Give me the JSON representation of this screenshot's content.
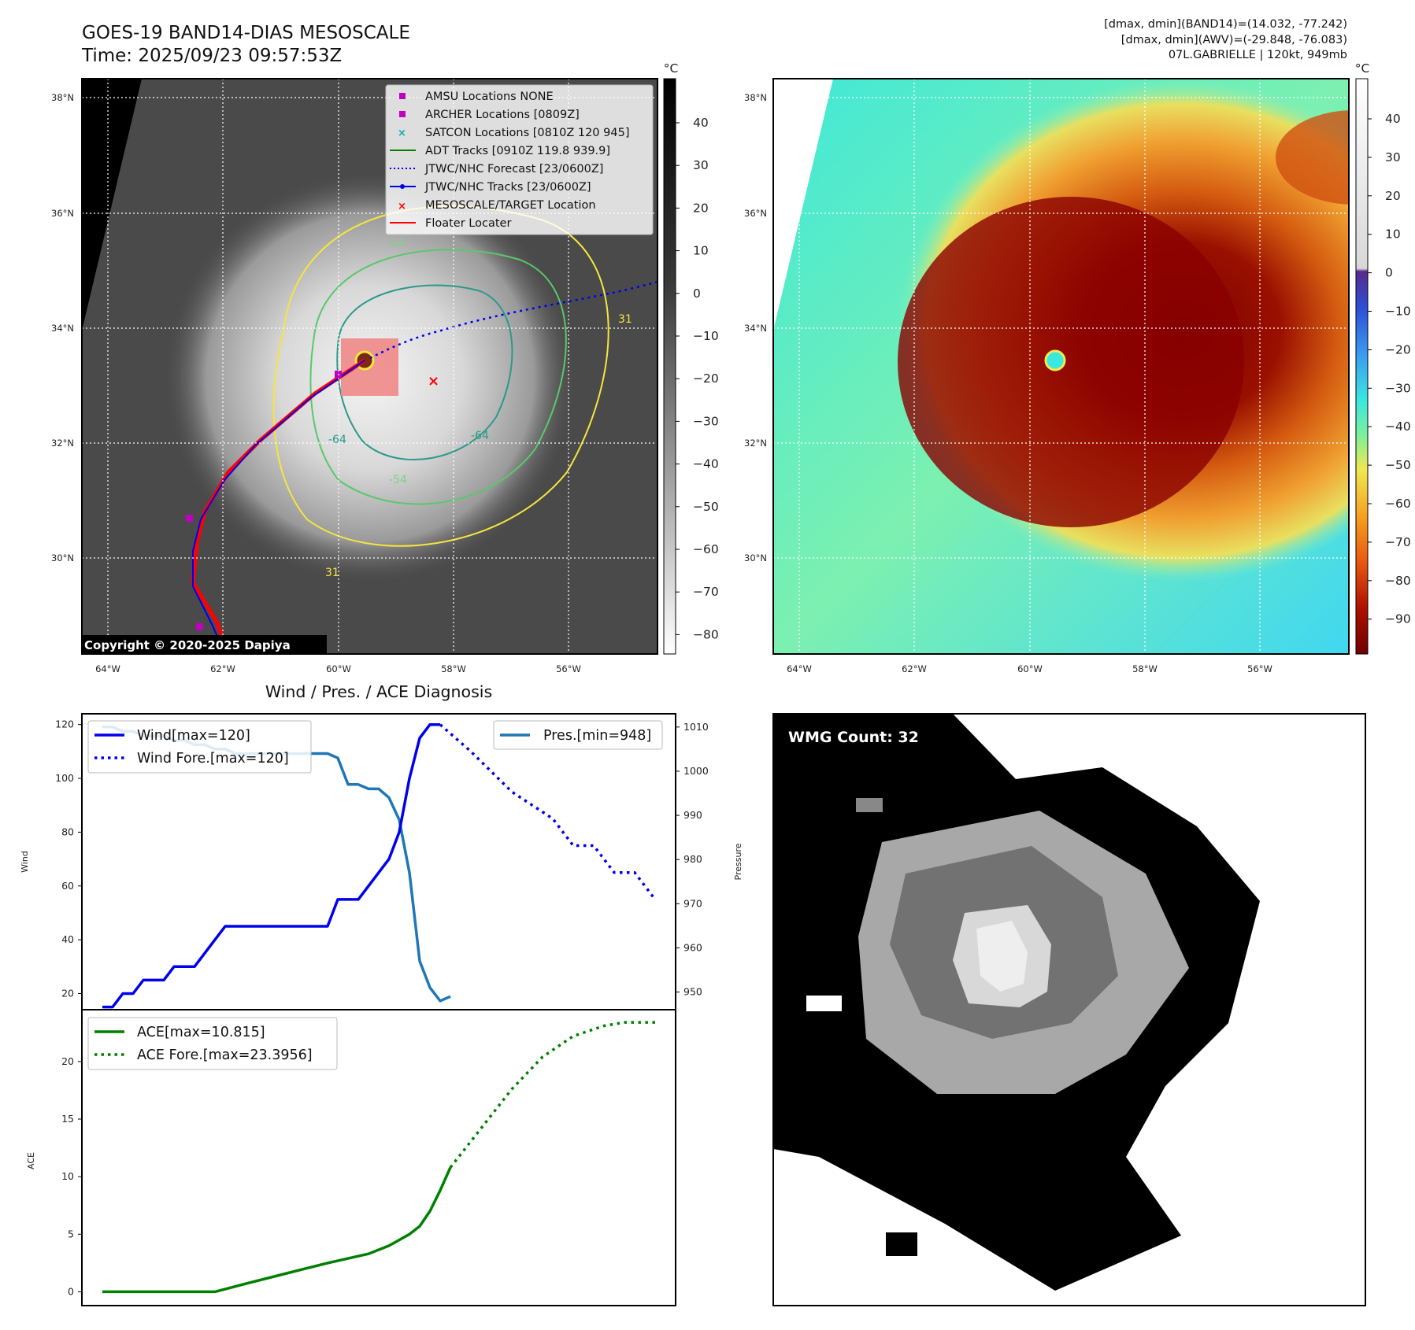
{
  "header": {
    "title_line1": "GOES-19 BAND14-DIAS MESOSCALE",
    "title_line2": "Time: 2025/09/23 09:57:53Z",
    "stats_line1": "[dmax, dmin](BAND14)=(14.032, -77.242)",
    "stats_line2": "[dmax, dmin](AWV)=(-29.848, -76.083)",
    "stats_line3": "07L.GABRIELLE | 120kt, 949mb"
  },
  "colors": {
    "wind": "#0000ee",
    "pressure": "#1f77b4",
    "ace": "#008000",
    "track": "#ff0000",
    "contour_yellow": "#f5e63c",
    "contour_green": "#5ac86a",
    "contour_teal": "#2a9a8a"
  },
  "map_left": {
    "lat_labels": [
      "38°N",
      "36°N",
      "34°N",
      "32°N",
      "30°N"
    ],
    "lon_labels": [
      "64°W",
      "62°W",
      "60°W",
      "58°W",
      "56°W"
    ],
    "contour_labels": [
      "-54",
      "-64",
      "-64",
      "-54",
      "31",
      "31"
    ],
    "copyright": "Copyright © 2020-2025 Dapiya",
    "legend": [
      {
        "label": "AMSU Locations NONE",
        "icon": "square-marker",
        "color": "#c000c0"
      },
      {
        "label": "ARCHER Locations [0809Z]",
        "icon": "square-marker",
        "color": "#c000c0"
      },
      {
        "label": "SATCON Locations [0810Z 120 945]",
        "icon": "x-marker",
        "color": "#00b0b0"
      },
      {
        "label": "ADT Tracks [0910Z 119.8 939.9]",
        "icon": "solid-line",
        "color": "#008000"
      },
      {
        "label": "JTWC/NHC Forecast [23/0600Z]",
        "icon": "dotted-line",
        "color": "#0000ee"
      },
      {
        "label": "JTWC/NHC Tracks [23/0600Z]",
        "icon": "line-dot",
        "color": "#0000ee"
      },
      {
        "label": "MESOSCALE/TARGET Location",
        "icon": "x-marker",
        "color": "#ff0000"
      },
      {
        "label": "Floater Locater",
        "icon": "solid-line",
        "color": "#ff0000"
      }
    ],
    "colorbar": {
      "unit": "°C",
      "ticks": [
        "40",
        "30",
        "20",
        "10",
        "0",
        "−10",
        "−20",
        "−30",
        "−40",
        "−50",
        "−60",
        "−70",
        "−80"
      ]
    }
  },
  "map_right": {
    "lat_labels": [
      "38°N",
      "36°N",
      "34°N",
      "32°N",
      "30°N"
    ],
    "lon_labels": [
      "64°W",
      "62°W",
      "60°W",
      "58°W",
      "56°W"
    ],
    "colorbar": {
      "unit": "°C",
      "ticks": [
        "40",
        "30",
        "20",
        "10",
        "0",
        "−10",
        "−20",
        "−30",
        "−40",
        "−50",
        "−60",
        "−70",
        "−80",
        "−90"
      ]
    }
  },
  "chart_data": [
    {
      "type": "line",
      "title": "Wind / Pres. / ACE Diagnosis",
      "ylabel": "Wind",
      "ylabel_right": "Pressure",
      "ylim": [
        14,
        124
      ],
      "ylim_right": [
        946,
        1013
      ],
      "yticks": [
        20,
        40,
        60,
        80,
        100,
        120
      ],
      "yticks_right": [
        950,
        960,
        970,
        980,
        990,
        1000,
        1010
      ],
      "legend_left": [
        "Wind[max=120]",
        "Wind Fore.[max=120]"
      ],
      "legend_right": [
        "Pres.[min=948]"
      ],
      "series": [
        {
          "name": "Wind[max=120]",
          "axis": "left",
          "style": "solid",
          "points": [
            [
              0,
              15
            ],
            [
              1,
              15
            ],
            [
              2,
              20
            ],
            [
              3,
              20
            ],
            [
              4,
              25
            ],
            [
              5,
              25
            ],
            [
              6,
              25
            ],
            [
              7,
              30
            ],
            [
              8,
              30
            ],
            [
              9,
              30
            ],
            [
              10,
              35
            ],
            [
              11,
              40
            ],
            [
              12,
              45
            ],
            [
              13,
              45
            ],
            [
              14,
              45
            ],
            [
              15,
              45
            ],
            [
              16,
              45
            ],
            [
              17,
              45
            ],
            [
              18,
              45
            ],
            [
              19,
              45
            ],
            [
              20,
              45
            ],
            [
              21,
              45
            ],
            [
              22,
              45
            ],
            [
              23,
              55
            ],
            [
              24,
              55
            ],
            [
              25,
              55
            ],
            [
              26,
              60
            ],
            [
              27,
              65
            ],
            [
              28,
              70
            ],
            [
              29,
              80
            ],
            [
              30,
              100
            ],
            [
              31,
              115
            ],
            [
              32,
              120
            ],
            [
              33,
              120
            ]
          ]
        },
        {
          "name": "Wind Fore.[max=120]",
          "axis": "left",
          "style": "dotted",
          "points": [
            [
              33,
              120
            ],
            [
              36,
              110
            ],
            [
              40,
              95
            ],
            [
              44,
              85
            ],
            [
              46,
              75
            ],
            [
              48,
              75
            ],
            [
              49,
              70
            ],
            [
              50,
              65
            ],
            [
              52,
              65
            ],
            [
              54,
              55
            ]
          ]
        },
        {
          "name": "Pres.[min=948]",
          "axis": "right",
          "style": "solid",
          "points": [
            [
              0,
              1010
            ],
            [
              1,
              1010
            ],
            [
              2,
              1009
            ],
            [
              3,
              1009
            ],
            [
              4,
              1008
            ],
            [
              5,
              1008
            ],
            [
              6,
              1008
            ],
            [
              7,
              1007
            ],
            [
              8,
              1007
            ],
            [
              9,
              1006
            ],
            [
              10,
              1006
            ],
            [
              11,
              1005
            ],
            [
              12,
              1005
            ],
            [
              13,
              1004
            ],
            [
              14,
              1004
            ],
            [
              15,
              1004
            ],
            [
              16,
              1004
            ],
            [
              17,
              1004
            ],
            [
              18,
              1004
            ],
            [
              19,
              1004
            ],
            [
              20,
              1004
            ],
            [
              21,
              1004
            ],
            [
              22,
              1004
            ],
            [
              23,
              1003
            ],
            [
              24,
              997
            ],
            [
              25,
              997
            ],
            [
              26,
              996
            ],
            [
              27,
              996
            ],
            [
              28,
              994
            ],
            [
              29,
              989
            ],
            [
              30,
              977
            ],
            [
              31,
              957
            ],
            [
              32,
              951
            ],
            [
              33,
              948
            ],
            [
              34,
              949
            ]
          ]
        }
      ]
    },
    {
      "type": "line",
      "ylabel": "ACE",
      "ylim": [
        -1.2,
        24.5
      ],
      "yticks": [
        0,
        5,
        10,
        15,
        20
      ],
      "legend": [
        "ACE[max=10.815]",
        "ACE Fore.[max=23.3956]"
      ],
      "series": [
        {
          "name": "ACE[max=10.815]",
          "style": "solid",
          "points": [
            [
              0,
              0
            ],
            [
              4,
              0
            ],
            [
              8,
              0
            ],
            [
              11,
              0
            ],
            [
              14,
              0.7
            ],
            [
              18,
              1.6
            ],
            [
              22,
              2.5
            ],
            [
              26,
              3.3
            ],
            [
              28,
              4.0
            ],
            [
              30,
              5.0
            ],
            [
              31,
              5.7
            ],
            [
              32,
              7.0
            ],
            [
              33,
              8.8
            ],
            [
              34,
              10.8
            ]
          ]
        },
        {
          "name": "ACE Fore.[max=23.3956]",
          "style": "dotted",
          "points": [
            [
              34,
              10.8
            ],
            [
              37,
              14.2
            ],
            [
              40,
              17.6
            ],
            [
              43,
              20.4
            ],
            [
              46,
              22.2
            ],
            [
              49,
              23.1
            ],
            [
              51,
              23.4
            ],
            [
              54,
              23.4
            ]
          ]
        }
      ],
      "xlim": [
        -2,
        56
      ]
    }
  ],
  "wmg_panel": {
    "label": "WMG Count: 32"
  }
}
